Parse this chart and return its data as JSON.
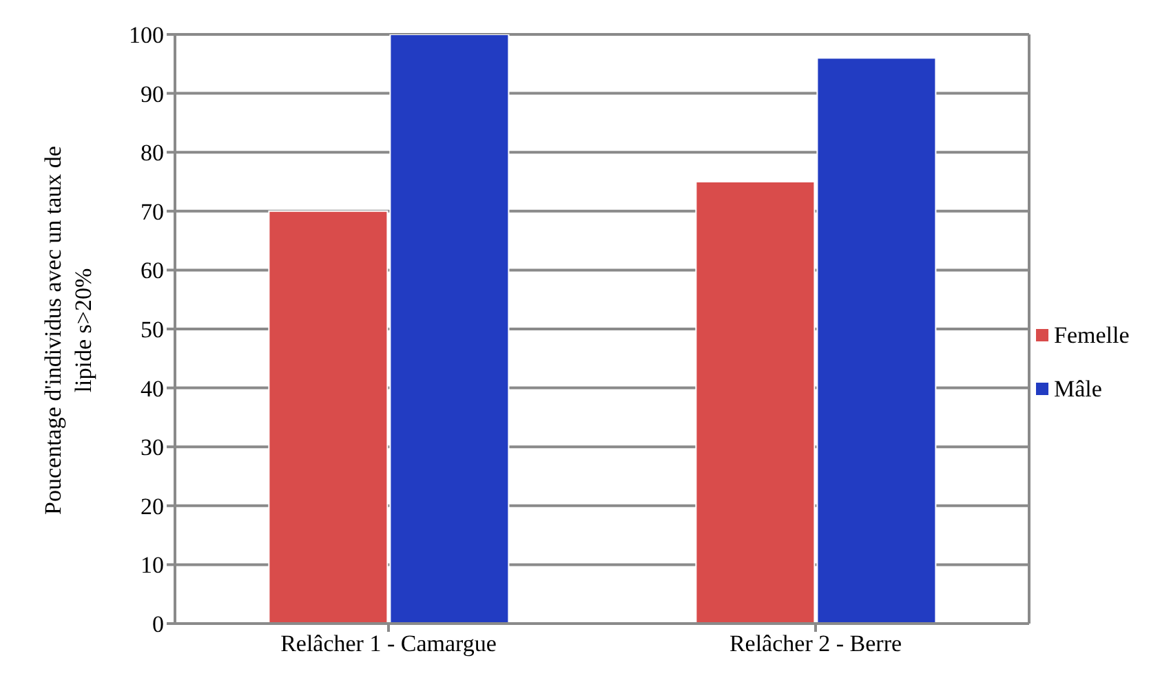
{
  "chart_data": {
    "type": "bar",
    "ylabel": "Poucentage d'individus avec un taux de lipide s>20%",
    "categories": [
      "Relâcher 1 - Camargue",
      "Relâcher 2 - Berre"
    ],
    "series": [
      {
        "name": "Femelle",
        "color": "#d94c4b",
        "values": [
          70,
          75
        ]
      },
      {
        "name": "Mâle",
        "color": "#223cc2",
        "values": [
          100,
          96
        ]
      }
    ],
    "ylim": [
      0,
      100
    ],
    "yticks": [
      0,
      10,
      20,
      30,
      40,
      50,
      60,
      70,
      80,
      90,
      100
    ],
    "grid": "y",
    "legend": "right"
  }
}
